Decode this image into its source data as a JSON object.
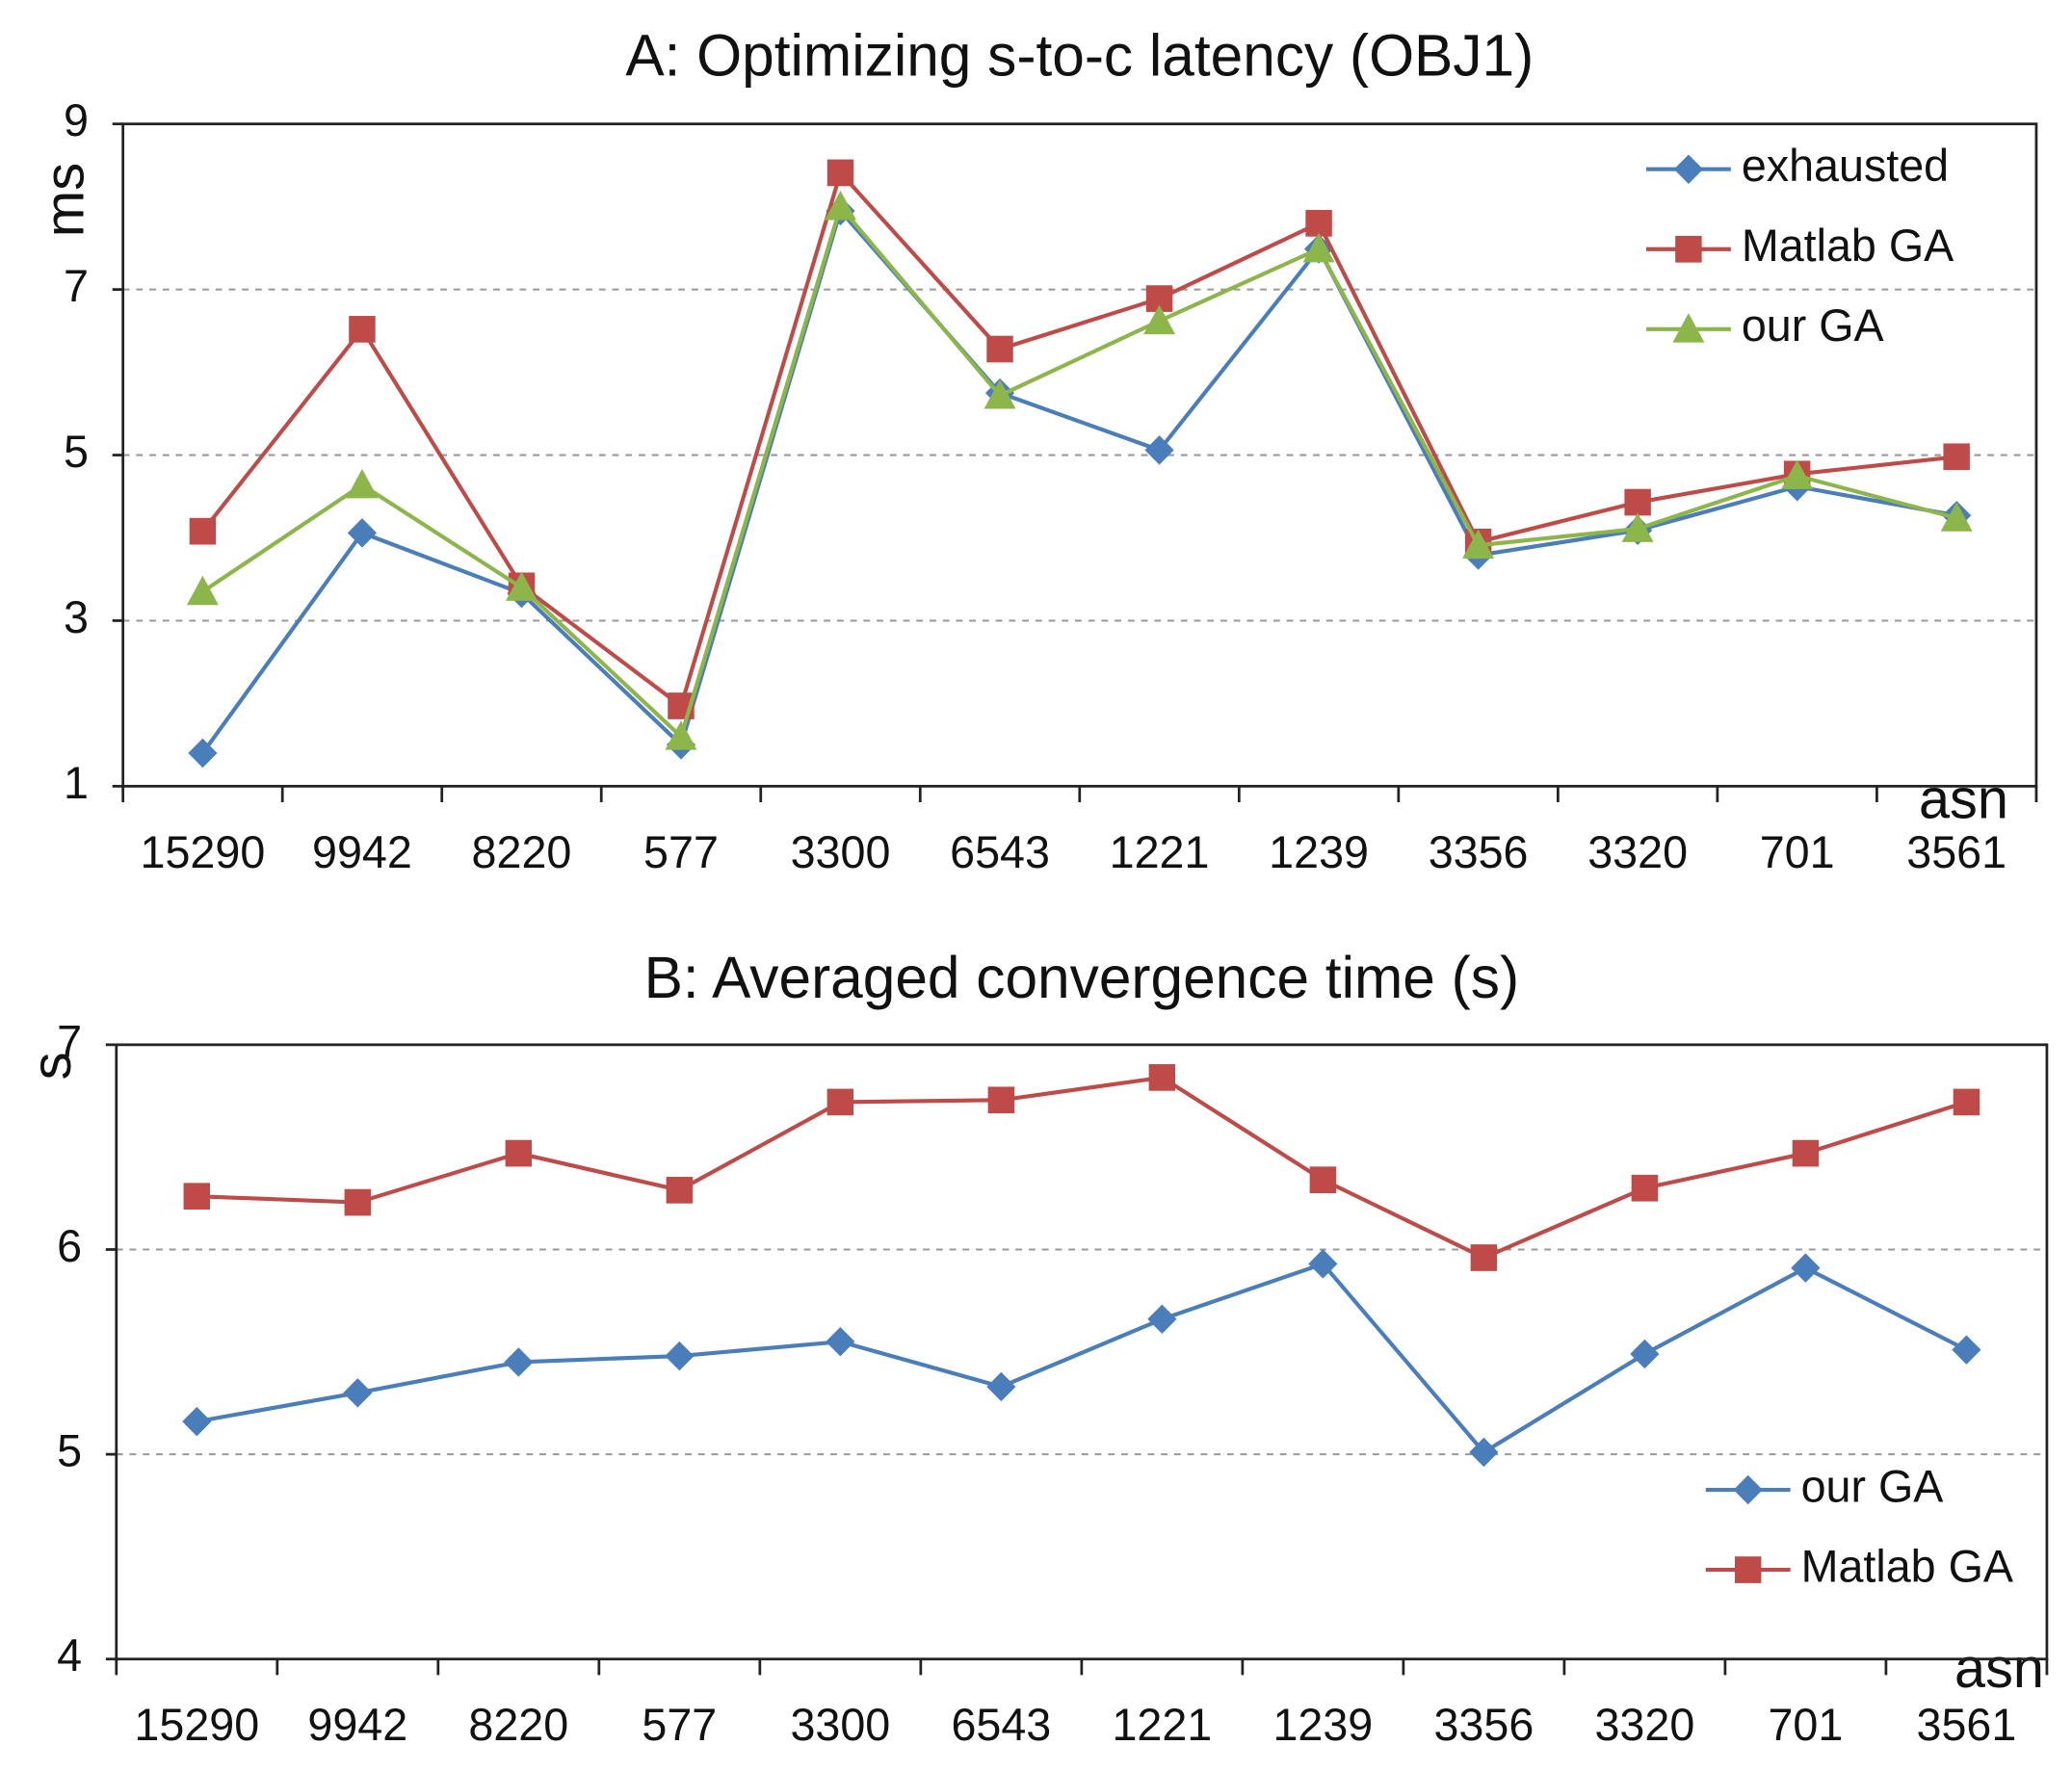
{
  "chart_data": [
    {
      "type": "line",
      "title": "A: Optimizing s-to-c latency (OBJ1)",
      "y_label": "ms",
      "x_label": "asn",
      "categories": [
        "15290",
        "9942",
        "8220",
        "577",
        "3300",
        "6543",
        "1221",
        "1239",
        "3356",
        "3320",
        "701",
        "3561"
      ],
      "ylim": [
        1,
        9
      ],
      "yticks": [
        1,
        3,
        5,
        7,
        9
      ],
      "grid": true,
      "legend": "upper right",
      "series": [
        {
          "name": "exhausted",
          "color": "#4a7ebb",
          "marker": "diamond",
          "values": [
            1.4,
            4.06,
            3.33,
            1.5,
            7.95,
            5.75,
            5.06,
            7.49,
            3.79,
            4.09,
            4.62,
            4.27
          ]
        },
        {
          "name": "Matlab GA",
          "color": "#be4b48",
          "marker": "square",
          "values": [
            4.08,
            6.52,
            3.42,
            1.97,
            8.41,
            6.28,
            6.89,
            7.8,
            3.95,
            4.43,
            4.77,
            4.98
          ]
        },
        {
          "name": "our GA",
          "color": "#8cb54a",
          "marker": "triangle",
          "values": [
            3.35,
            4.64,
            3.4,
            1.6,
            8.0,
            5.72,
            6.62,
            7.49,
            3.91,
            4.11,
            4.75,
            4.24
          ]
        }
      ]
    },
    {
      "type": "line",
      "title": "B: Averaged convergence time (s)",
      "y_label": "s",
      "x_label": "asn",
      "categories": [
        "15290",
        "9942",
        "8220",
        "577",
        "3300",
        "6543",
        "1221",
        "1239",
        "3356",
        "3320",
        "701",
        "3561"
      ],
      "ylim": [
        4,
        7
      ],
      "yticks": [
        4,
        5,
        6,
        7
      ],
      "grid": true,
      "legend": "lower right",
      "series": [
        {
          "name": "our GA",
          "color": "#4a7ebb",
          "marker": "diamond",
          "values": [
            5.16,
            5.3,
            5.45,
            5.48,
            5.55,
            5.33,
            5.66,
            5.93,
            5.01,
            5.49,
            5.91,
            5.51
          ]
        },
        {
          "name": "Matlab GA",
          "color": "#be4b48",
          "marker": "square",
          "values": [
            6.26,
            6.23,
            6.47,
            6.29,
            6.72,
            6.73,
            6.84,
            6.34,
            5.96,
            6.3,
            6.47,
            6.72
          ]
        }
      ]
    }
  ]
}
